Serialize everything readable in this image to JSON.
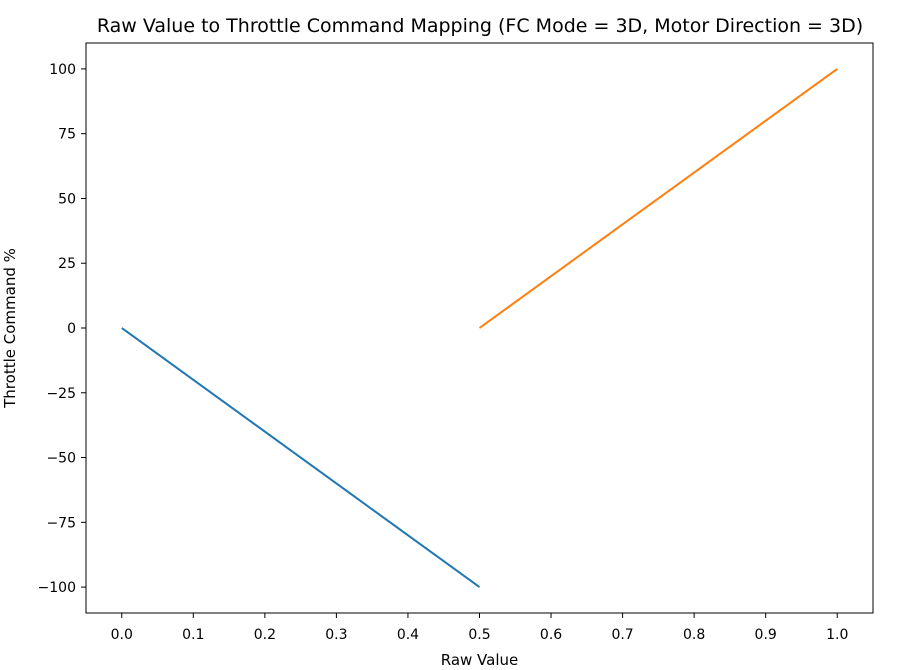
{
  "chart_data": {
    "type": "line",
    "title": "Raw Value to Throttle Command Mapping (FC Mode = 3D, Motor Direction = 3D)",
    "xlabel": "Raw Value",
    "ylabel": "Throttle Command %",
    "xlim": [
      -0.05,
      1.05
    ],
    "ylim": [
      -110,
      110
    ],
    "xticks": [
      0.0,
      0.1,
      0.2,
      0.3,
      0.4,
      0.5,
      0.6,
      0.7,
      0.8,
      0.9,
      1.0
    ],
    "xtick_labels": [
      "0.0",
      "0.1",
      "0.2",
      "0.3",
      "0.4",
      "0.5",
      "0.6",
      "0.7",
      "0.8",
      "0.9",
      "1.0"
    ],
    "yticks": [
      100,
      75,
      50,
      25,
      0,
      -25,
      -50,
      -75,
      -100
    ],
    "ytick_labels": [
      "100",
      "75",
      "50",
      "25",
      "0",
      "−25",
      "−50",
      "−75",
      "−100"
    ],
    "grid": false,
    "series": [
      {
        "color": "#1f77b4",
        "x": [
          0.0,
          0.5
        ],
        "y": [
          0,
          -100
        ]
      },
      {
        "color": "#ff7f0e",
        "x": [
          0.5,
          1.0
        ],
        "y": [
          0,
          100
        ]
      }
    ]
  }
}
